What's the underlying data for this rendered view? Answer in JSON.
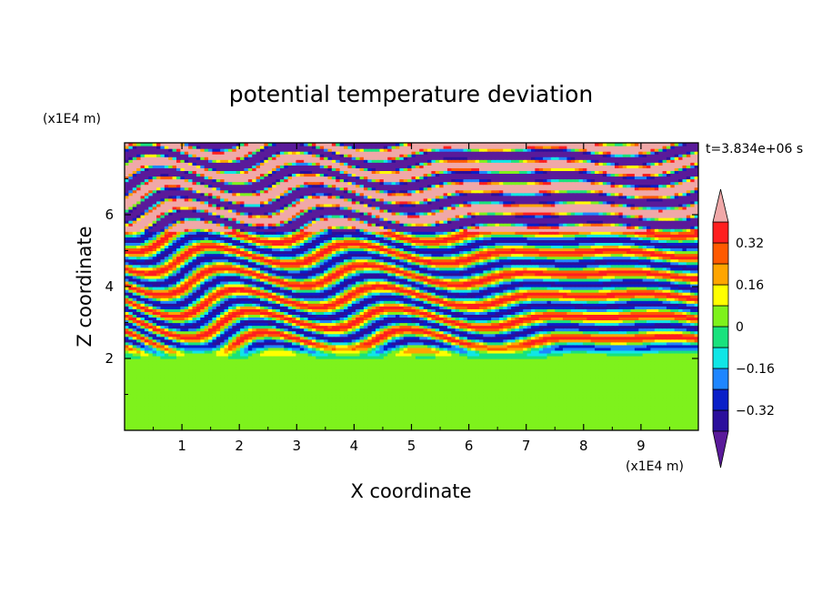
{
  "chart_data": {
    "type": "heatmap",
    "title": "potential temperature deviation",
    "xlabel": "X coordinate",
    "ylabel": "Z coordinate",
    "x_unit": "(x1E4 m)",
    "y_unit": "(x1E4 m)",
    "time_label": "t=3.834e+06 s",
    "xlim": [
      0,
      10
    ],
    "ylim": [
      0,
      8
    ],
    "x_ticks": [
      "1",
      "2",
      "3",
      "4",
      "5",
      "6",
      "7",
      "8",
      "9"
    ],
    "x_tick_values": [
      1,
      2,
      3,
      4,
      5,
      6,
      7,
      8,
      9
    ],
    "y_ticks": [
      "2",
      "4",
      "6"
    ],
    "y_tick_values": [
      2,
      4,
      6
    ],
    "colorbar": {
      "levels": [
        -0.4,
        -0.32,
        -0.24,
        -0.16,
        -0.08,
        0,
        0.08,
        0.16,
        0.24,
        0.32,
        0.4
      ],
      "labels": [
        "0.32",
        "0.16",
        "0",
        "−0.16",
        "−0.32"
      ],
      "label_values": [
        0.32,
        0.16,
        0,
        -0.16,
        -0.32
      ],
      "colors": [
        "#5a1a9a",
        "#2b0f9c",
        "#0a1fc8",
        "#1e86ff",
        "#10e6e6",
        "#19e27d",
        "#7ef21c",
        "#ffff00",
        "#ffa500",
        "#ff5a00",
        "#ff1f1f",
        "#f0a8a8"
      ]
    },
    "regions": [
      {
        "z_range": [
          0,
          2
        ],
        "description_values": [
          0,
          0.08
        ]
      },
      {
        "z_range": [
          2,
          5.5
        ],
        "description_values": [
          -0.4,
          0.4
        ]
      },
      {
        "z_range": [
          5.5,
          8
        ],
        "description_values": [
          -0.4,
          0.4
        ]
      }
    ]
  }
}
